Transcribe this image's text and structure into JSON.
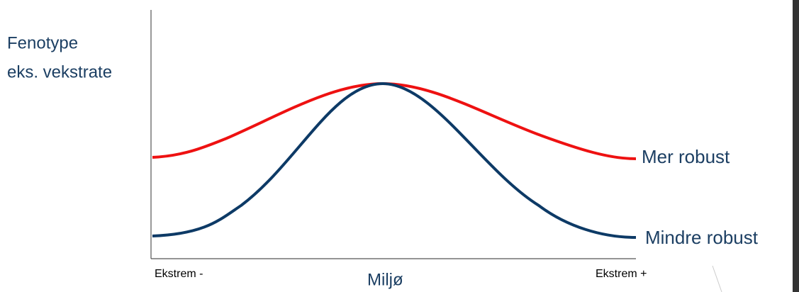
{
  "y_label": {
    "lines": [
      "Fenotype",
      "eks. vekstrate"
    ]
  },
  "x_label": "Miljø",
  "x_ends": [
    "Ekstrem -",
    "Ekstrem +"
  ],
  "curves": [
    "Mer robust",
    "Mindre robust"
  ]
}
